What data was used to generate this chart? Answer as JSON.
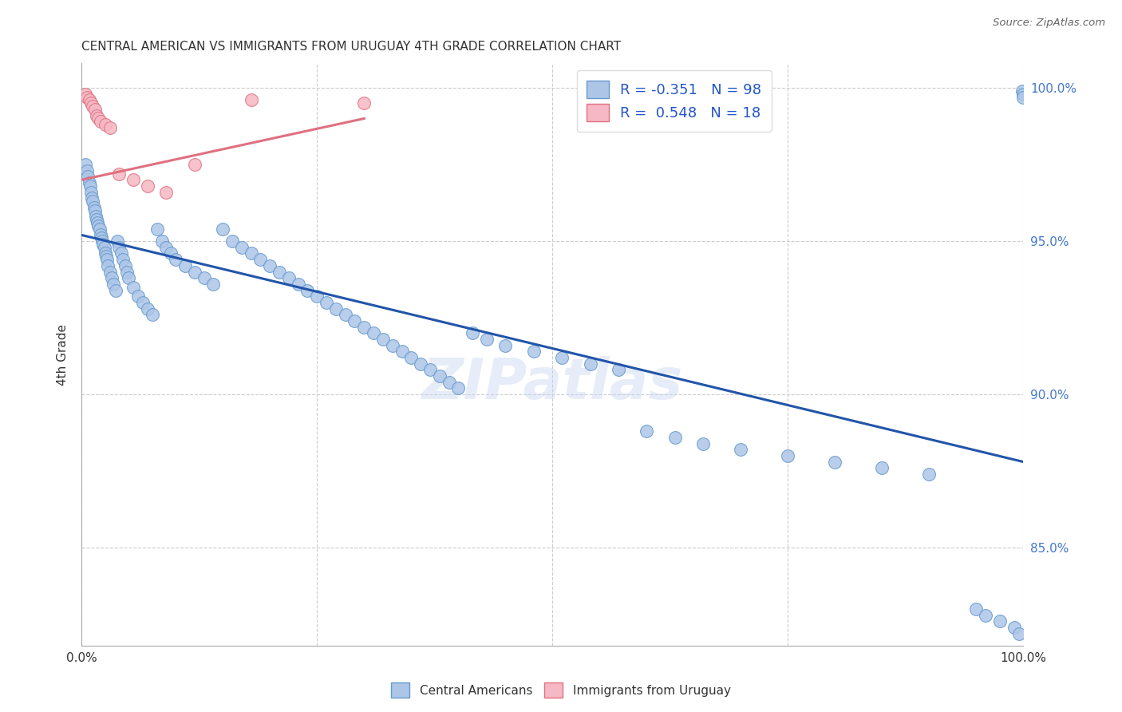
{
  "title": "CENTRAL AMERICAN VS IMMIGRANTS FROM URUGUAY 4TH GRADE CORRELATION CHART",
  "source": "Source: ZipAtlas.com",
  "ylabel": "4th Grade",
  "xlim": [
    0.0,
    1.0
  ],
  "ylim": [
    0.818,
    1.008
  ],
  "yticks": [
    0.85,
    0.9,
    0.95,
    1.0
  ],
  "xticks": [
    0.0,
    0.25,
    0.5,
    0.75,
    1.0
  ],
  "ytick_labels": [
    "85.0%",
    "90.0%",
    "95.0%",
    "100.0%"
  ],
  "blue_color": "#adc6e8",
  "pink_color": "#f5b8c4",
  "blue_edge_color": "#6699cc",
  "pink_edge_color": "#e07080",
  "blue_line_color": "#2255aa",
  "pink_line_color": "#e07080",
  "legend_label_1": "R = -0.351   N = 98",
  "legend_label_2": "R =  0.548   N = 18",
  "watermark": "ZIPatlas",
  "blue_line_x0": 0.0,
  "blue_line_y0": 0.952,
  "blue_line_x1": 1.0,
  "blue_line_y1": 0.878,
  "pink_line_x0": 0.0,
  "pink_line_y0": 0.97,
  "pink_line_x1": 0.3,
  "pink_line_y1": 0.99,
  "blue_x": [
    0.004,
    0.006,
    0.007,
    0.008,
    0.009,
    0.01,
    0.011,
    0.012,
    0.013,
    0.014,
    0.015,
    0.016,
    0.017,
    0.018,
    0.019,
    0.02,
    0.021,
    0.022,
    0.023,
    0.024,
    0.025,
    0.026,
    0.027,
    0.028,
    0.03,
    0.032,
    0.034,
    0.036,
    0.038,
    0.04,
    0.042,
    0.044,
    0.046,
    0.048,
    0.05,
    0.055,
    0.06,
    0.065,
    0.07,
    0.075,
    0.08,
    0.085,
    0.09,
    0.095,
    0.1,
    0.11,
    0.12,
    0.13,
    0.14,
    0.15,
    0.16,
    0.17,
    0.18,
    0.19,
    0.2,
    0.21,
    0.22,
    0.23,
    0.24,
    0.25,
    0.26,
    0.27,
    0.28,
    0.29,
    0.3,
    0.31,
    0.32,
    0.33,
    0.34,
    0.35,
    0.36,
    0.37,
    0.38,
    0.39,
    0.4,
    0.415,
    0.43,
    0.45,
    0.48,
    0.51,
    0.54,
    0.57,
    0.6,
    0.63,
    0.66,
    0.7,
    0.75,
    0.8,
    0.85,
    0.9,
    0.95,
    0.96,
    0.975,
    0.99,
    0.995,
    0.999,
    1.0,
    1.0
  ],
  "blue_y": [
    0.975,
    0.973,
    0.971,
    0.969,
    0.968,
    0.966,
    0.964,
    0.963,
    0.961,
    0.96,
    0.958,
    0.957,
    0.956,
    0.955,
    0.954,
    0.952,
    0.951,
    0.95,
    0.949,
    0.948,
    0.946,
    0.945,
    0.944,
    0.942,
    0.94,
    0.938,
    0.936,
    0.934,
    0.95,
    0.948,
    0.946,
    0.944,
    0.942,
    0.94,
    0.938,
    0.935,
    0.932,
    0.93,
    0.928,
    0.926,
    0.954,
    0.95,
    0.948,
    0.946,
    0.944,
    0.942,
    0.94,
    0.938,
    0.936,
    0.954,
    0.95,
    0.948,
    0.946,
    0.944,
    0.942,
    0.94,
    0.938,
    0.936,
    0.934,
    0.932,
    0.93,
    0.928,
    0.926,
    0.924,
    0.922,
    0.92,
    0.918,
    0.916,
    0.914,
    0.912,
    0.91,
    0.908,
    0.906,
    0.904,
    0.902,
    0.92,
    0.918,
    0.916,
    0.914,
    0.912,
    0.91,
    0.908,
    0.888,
    0.886,
    0.884,
    0.882,
    0.88,
    0.878,
    0.876,
    0.874,
    0.83,
    0.828,
    0.826,
    0.824,
    0.822,
    0.999,
    0.998,
    0.997
  ],
  "pink_x": [
    0.004,
    0.006,
    0.008,
    0.01,
    0.012,
    0.014,
    0.016,
    0.018,
    0.02,
    0.025,
    0.03,
    0.04,
    0.055,
    0.07,
    0.09,
    0.12,
    0.18,
    0.3
  ],
  "pink_y": [
    0.998,
    0.997,
    0.996,
    0.995,
    0.994,
    0.993,
    0.991,
    0.99,
    0.989,
    0.988,
    0.987,
    0.972,
    0.97,
    0.968,
    0.966,
    0.975,
    0.996,
    0.995
  ]
}
